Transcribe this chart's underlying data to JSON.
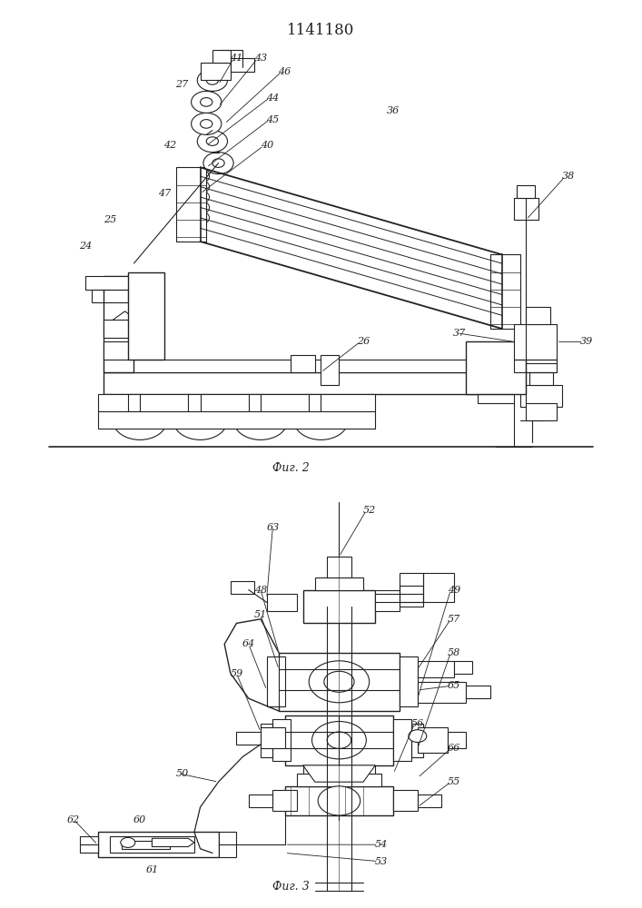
{
  "title": "1141180",
  "fig1_caption": "Фиг. 2",
  "fig2_caption": "Фиг. 3",
  "lc": "#222222",
  "fs": 8.0
}
